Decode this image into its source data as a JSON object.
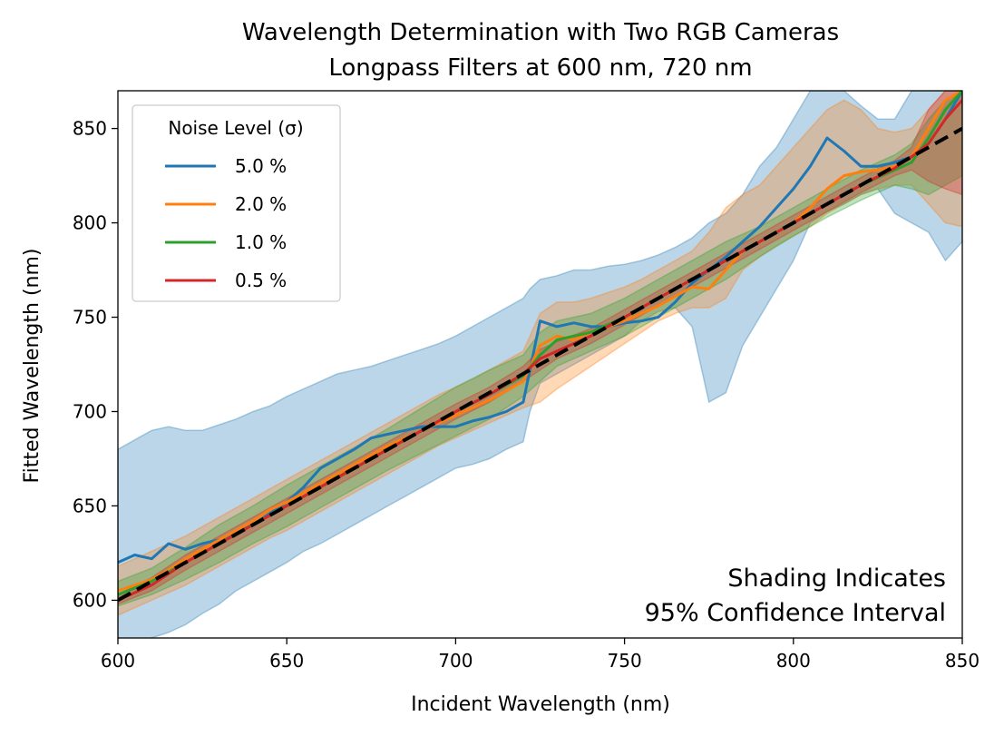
{
  "chart_data": {
    "type": "line",
    "title": "Wavelength Determination with Two RGB Cameras",
    "subtitle": "Longpass Filters at 600 nm, 720 nm",
    "xlabel": "Incident Wavelength (nm)",
    "ylabel": "Fitted Wavelength (nm)",
    "xlim": [
      600,
      850
    ],
    "ylim": [
      580,
      870
    ],
    "xticks": [
      600,
      650,
      700,
      750,
      800,
      850
    ],
    "yticks": [
      600,
      650,
      700,
      750,
      800,
      850
    ],
    "grid": false,
    "legend": {
      "title": "Noise Level (σ)",
      "placement": "top-left"
    },
    "annotation": [
      "Shading Indicates",
      "95% Confidence Interval"
    ],
    "reference_line": {
      "style": "dashed",
      "color": "#000000",
      "x": [
        600,
        850
      ],
      "y": [
        600,
        850
      ]
    },
    "series": [
      {
        "name": "5.0 %",
        "color": "#1f77b4",
        "x": [
          600,
          605,
          610,
          615,
          620,
          625,
          630,
          635,
          640,
          645,
          650,
          655,
          660,
          665,
          670,
          675,
          680,
          685,
          690,
          695,
          700,
          705,
          710,
          715,
          720,
          722,
          725,
          730,
          735,
          740,
          745,
          750,
          755,
          760,
          765,
          770,
          775,
          780,
          785,
          790,
          795,
          800,
          805,
          810,
          815,
          820,
          825,
          830,
          835,
          840,
          845,
          850
        ],
        "y": [
          620,
          624,
          622,
          630,
          627,
          630,
          632,
          636,
          640,
          646,
          652,
          660,
          670,
          675,
          680,
          686,
          688,
          690,
          692,
          692,
          692,
          695,
          697,
          700,
          705,
          722,
          748,
          745,
          747,
          745,
          745,
          747,
          748,
          750,
          758,
          768,
          775,
          782,
          790,
          798,
          808,
          818,
          830,
          845,
          838,
          830,
          830,
          832,
          835,
          842,
          855,
          870
        ],
        "lower": [
          578,
          575,
          580,
          583,
          587,
          593,
          598,
          605,
          610,
          615,
          620,
          626,
          630,
          635,
          640,
          645,
          650,
          655,
          660,
          665,
          670,
          672,
          675,
          680,
          684,
          700,
          715,
          720,
          725,
          730,
          735,
          740,
          748,
          753,
          755,
          745,
          705,
          710,
          735,
          750,
          765,
          780,
          800,
          806,
          810,
          815,
          818,
          805,
          800,
          795,
          780,
          790
        ],
        "upper": [
          680,
          685,
          690,
          692,
          690,
          690,
          693,
          696,
          700,
          703,
          708,
          712,
          716,
          720,
          722,
          724,
          727,
          730,
          733,
          736,
          740,
          745,
          750,
          755,
          760,
          765,
          770,
          772,
          775,
          775,
          777,
          778,
          780,
          783,
          787,
          792,
          800,
          805,
          815,
          830,
          840,
          855,
          870,
          870,
          870,
          862,
          855,
          855,
          870,
          870,
          870,
          870
        ]
      },
      {
        "name": "2.0 %",
        "color": "#ff7f0e",
        "x": [
          600,
          605,
          610,
          615,
          620,
          625,
          630,
          635,
          640,
          645,
          650,
          655,
          660,
          665,
          670,
          675,
          680,
          685,
          690,
          695,
          700,
          705,
          710,
          715,
          720,
          725,
          730,
          735,
          740,
          745,
          750,
          755,
          760,
          765,
          770,
          775,
          780,
          785,
          790,
          795,
          800,
          805,
          810,
          815,
          820,
          825,
          830,
          835,
          840,
          845,
          850
        ],
        "y": [
          605,
          608,
          611,
          616,
          622,
          627,
          632,
          637,
          642,
          648,
          652,
          657,
          662,
          667,
          672,
          677,
          682,
          686,
          690,
          694,
          698,
          702,
          706,
          711,
          716,
          735,
          740,
          738,
          742,
          745,
          748,
          752,
          756,
          761,
          766,
          765,
          775,
          785,
          790,
          795,
          800,
          808,
          818,
          825,
          827,
          828,
          830,
          835,
          850,
          865,
          870
        ],
        "lower": [
          592,
          596,
          600,
          604,
          608,
          613,
          618,
          623,
          628,
          633,
          637,
          642,
          647,
          652,
          657,
          662,
          667,
          672,
          677,
          682,
          686,
          690,
          694,
          698,
          702,
          705,
          712,
          718,
          724,
          730,
          736,
          742,
          748,
          752,
          755,
          755,
          760,
          775,
          782,
          788,
          793,
          798,
          805,
          810,
          815,
          818,
          820,
          820,
          810,
          800,
          798
        ],
        "upper": [
          618,
          622,
          626,
          630,
          634,
          639,
          644,
          649,
          654,
          659,
          664,
          669,
          674,
          679,
          684,
          689,
          694,
          699,
          704,
          709,
          713,
          717,
          722,
          727,
          732,
          752,
          758,
          758,
          760,
          763,
          766,
          770,
          775,
          780,
          785,
          795,
          808,
          815,
          820,
          830,
          840,
          850,
          860,
          865,
          860,
          850,
          848,
          850,
          860,
          870,
          870
        ]
      },
      {
        "name": "1.0 %",
        "color": "#2ca02c",
        "x": [
          600,
          610,
          620,
          630,
          640,
          650,
          660,
          670,
          680,
          690,
          700,
          710,
          720,
          725,
          730,
          740,
          750,
          760,
          770,
          780,
          790,
          800,
          810,
          820,
          830,
          835,
          840,
          845,
          850
        ],
        "y": [
          603,
          610,
          620,
          630,
          640,
          650,
          660,
          670,
          680,
          690,
          700,
          709,
          719,
          730,
          738,
          742,
          750,
          760,
          770,
          780,
          790,
          800,
          810,
          820,
          828,
          832,
          845,
          860,
          870
        ],
        "lower": [
          597,
          603,
          611,
          620,
          630,
          639,
          649,
          659,
          669,
          678,
          687,
          696,
          708,
          716,
          724,
          732,
          740,
          750,
          760,
          770,
          782,
          793,
          803,
          812,
          820,
          818,
          815,
          820,
          825
        ],
        "upper": [
          610,
          617,
          628,
          640,
          650,
          661,
          671,
          681,
          691,
          702,
          713,
          722,
          730,
          742,
          748,
          752,
          760,
          770,
          780,
          790,
          798,
          808,
          818,
          828,
          836,
          842,
          855,
          865,
          870
        ]
      },
      {
        "name": "0.5 %",
        "color": "#d62728",
        "x": [
          600,
          610,
          620,
          630,
          640,
          650,
          660,
          670,
          680,
          690,
          700,
          710,
          720,
          725,
          730,
          740,
          750,
          760,
          770,
          780,
          790,
          800,
          810,
          820,
          830,
          835,
          840,
          845,
          850
        ],
        "y": [
          600,
          608,
          620,
          630,
          640,
          650,
          660,
          670,
          680,
          690,
          700,
          709,
          720,
          728,
          732,
          740,
          750,
          760,
          770,
          780,
          790,
          800,
          810,
          820,
          829,
          835,
          842,
          855,
          865
        ],
        "lower": [
          598,
          605,
          616,
          626,
          636,
          646,
          656,
          666,
          676,
          686,
          696,
          705,
          716,
          722,
          728,
          736,
          746,
          756,
          766,
          776,
          786,
          796,
          806,
          816,
          825,
          828,
          822,
          818,
          815
        ],
        "upper": [
          603,
          612,
          624,
          634,
          644,
          654,
          664,
          674,
          684,
          694,
          704,
          713,
          724,
          733,
          737,
          744,
          754,
          764,
          774,
          784,
          794,
          804,
          814,
          824,
          833,
          840,
          860,
          870,
          870
        ]
      }
    ]
  }
}
